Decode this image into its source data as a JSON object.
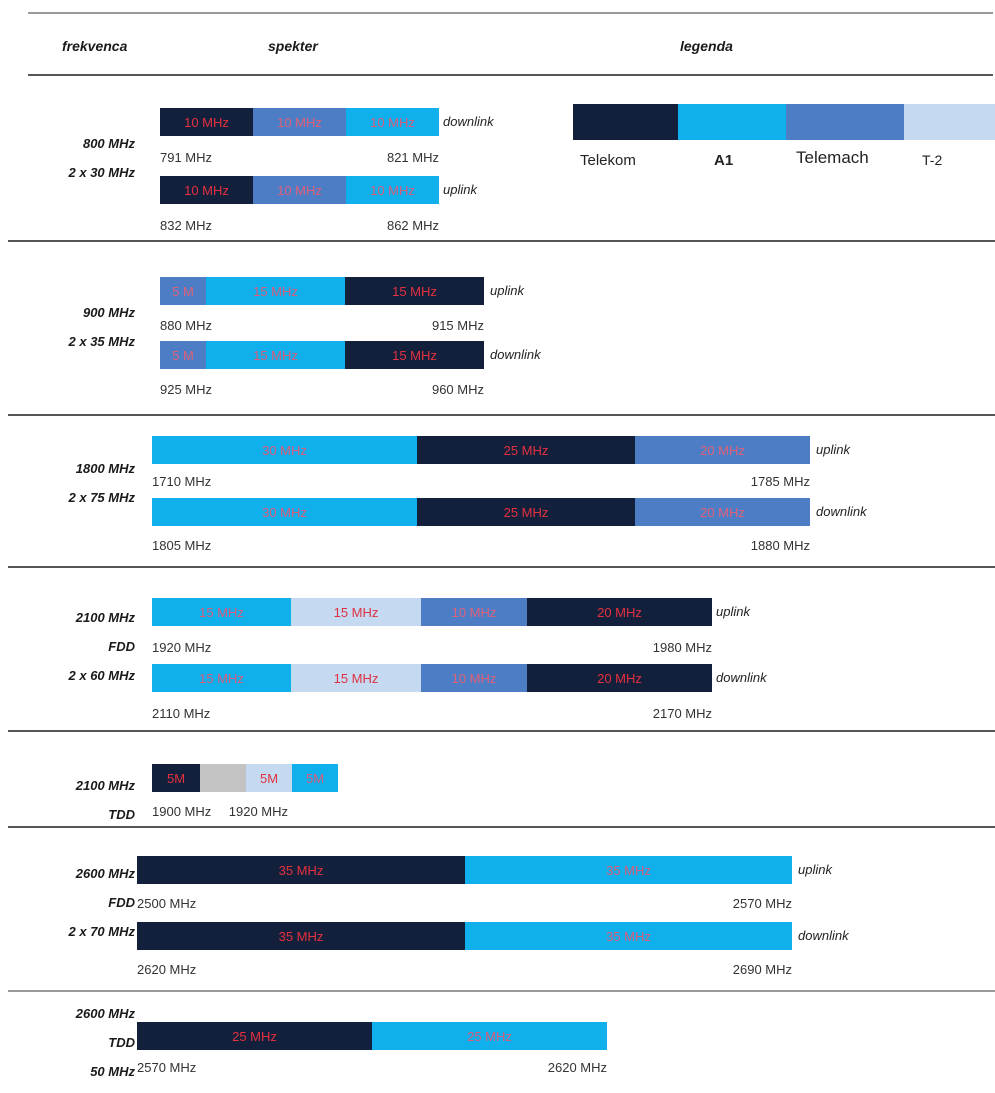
{
  "headers": {
    "col1": "frekvenca",
    "col2": "spekter",
    "col3": "legenda"
  },
  "legend": {
    "items": [
      {
        "label": "Telekom",
        "color": "#13203b"
      },
      {
        "label": "A1",
        "color": "#0fb0eb"
      },
      {
        "label": "Telemach",
        "color": "#4d7ec5"
      },
      {
        "label": "T-2",
        "color": "#c5daf1"
      }
    ]
  },
  "bands": [
    {
      "labels": [
        "800 MHz",
        "2 x 30 MHz"
      ],
      "rows": [
        {
          "label": "downlink",
          "segments": [
            {
              "text": "10 MHz",
              "op": "Telekom"
            },
            {
              "text": "10 MHz",
              "op": "Telemach"
            },
            {
              "text": "10 MHz",
              "op": "A1"
            }
          ],
          "start": "791 MHz",
          "end": "821 MHz"
        },
        {
          "label": "uplink",
          "segments": [
            {
              "text": "10 MHz",
              "op": "Telekom"
            },
            {
              "text": "10 MHz",
              "op": "Telemach"
            },
            {
              "text": "10 MHz",
              "op": "A1"
            }
          ],
          "start": "832 MHz",
          "end": "862 MHz"
        }
      ]
    },
    {
      "labels": [
        "900 MHz",
        "2 x 35 MHz"
      ],
      "rows": [
        {
          "label": "uplink",
          "segments": [
            {
              "text": "5 M",
              "op": "Telemach"
            },
            {
              "text": "15 MHz",
              "op": "A1"
            },
            {
              "text": "15 MHz",
              "op": "Telekom"
            }
          ],
          "start": "880 MHz",
          "end": "915 MHz"
        },
        {
          "label": "downlink",
          "segments": [
            {
              "text": "5 M",
              "op": "Telemach"
            },
            {
              "text": "15 MHz",
              "op": "A1"
            },
            {
              "text": "15 MHz",
              "op": "Telekom"
            }
          ],
          "start": "925 MHz",
          "end": "960 MHz"
        }
      ]
    },
    {
      "labels": [
        "1800 MHz",
        "2 x 75 MHz"
      ],
      "rows": [
        {
          "label": "uplink",
          "segments": [
            {
              "text": "30 MHz",
              "op": "A1"
            },
            {
              "text": "25 MHz",
              "op": "Telekom"
            },
            {
              "text": "20 MHz",
              "op": "Telemach"
            }
          ],
          "start": "1710 MHz",
          "end": "1785 MHz"
        },
        {
          "label": "downlink",
          "segments": [
            {
              "text": "30 MHz",
              "op": "A1"
            },
            {
              "text": "25 MHz",
              "op": "Telekom"
            },
            {
              "text": "20 MHz",
              "op": "Telemach"
            }
          ],
          "start": "1805 MHz",
          "end": "1880 MHz"
        }
      ]
    },
    {
      "labels": [
        "2100 MHz",
        "FDD",
        "2 x 60 MHz"
      ],
      "rows": [
        {
          "label": "uplink",
          "segments": [
            {
              "text": "15 MHz",
              "op": "A1"
            },
            {
              "text": "15 MHz",
              "op": "T-2"
            },
            {
              "text": "10 MHz",
              "op": "Telemach"
            },
            {
              "text": "20 MHz",
              "op": "Telekom"
            }
          ],
          "start": "1920 MHz",
          "end": "1980 MHz"
        },
        {
          "label": "downlink",
          "segments": [
            {
              "text": "15 MHz",
              "op": "A1"
            },
            {
              "text": "15 MHz",
              "op": "T-2"
            },
            {
              "text": "10 MHz",
              "op": "Telemach"
            },
            {
              "text": "20 MHz",
              "op": "Telekom"
            }
          ],
          "start": "2110 MHz",
          "end": "2170 MHz"
        }
      ]
    },
    {
      "labels": [
        "2100 MHz",
        "TDD"
      ],
      "rows": [
        {
          "label": "",
          "segments": [
            {
              "text": "5M",
              "op": "Telekom"
            },
            {
              "text": "",
              "op": "unassigned"
            },
            {
              "text": "5M",
              "op": "T-2"
            },
            {
              "text": "5M",
              "op": "A1"
            }
          ],
          "start": "1900 MHz",
          "end": "1920 MHz"
        }
      ]
    },
    {
      "labels": [
        "2600 MHz",
        "FDD",
        "2 x 70 MHz"
      ],
      "rows": [
        {
          "label": "uplink",
          "segments": [
            {
              "text": "35 MHz",
              "op": "Telekom"
            },
            {
              "text": "35 MHz",
              "op": "A1"
            }
          ],
          "start": "2500 MHz",
          "end": "2570 MHz"
        },
        {
          "label": "downlink",
          "segments": [
            {
              "text": "35 MHz",
              "op": "Telekom"
            },
            {
              "text": "35 MHz",
              "op": "A1"
            }
          ],
          "start": "2620 MHz",
          "end": "2690 MHz"
        }
      ]
    },
    {
      "labels": [
        "2600 MHz",
        "TDD",
        "50 MHz"
      ],
      "rows": [
        {
          "label": "",
          "segments": [
            {
              "text": "25 MHz",
              "op": "Telekom"
            },
            {
              "text": "25 MHz",
              "op": "A1"
            }
          ],
          "start": "2570 MHz",
          "end": "2620 MHz"
        }
      ]
    }
  ],
  "colors": {
    "Telekom": "#13203b",
    "A1": "#0fb0eb",
    "Telemach": "#4d7ec5",
    "T-2": "#c5daf1",
    "unassigned": "#c3c3c3"
  }
}
